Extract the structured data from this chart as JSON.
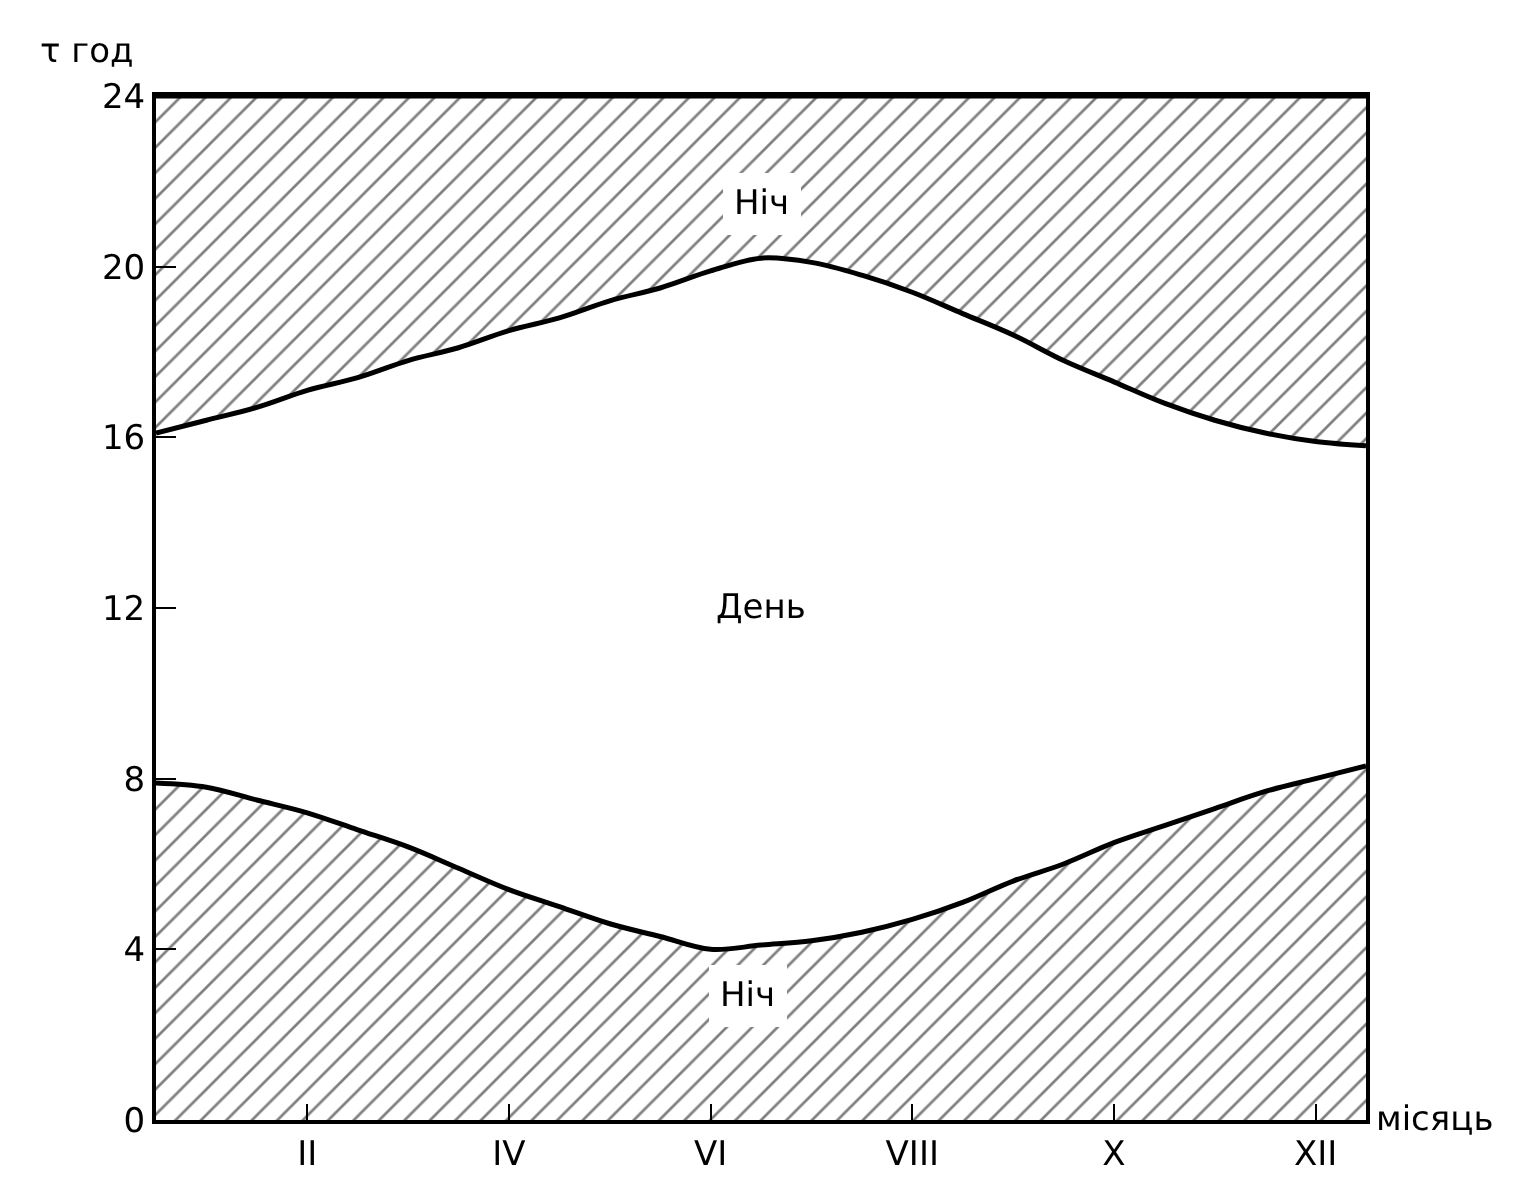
{
  "chart_data": {
    "type": "area",
    "stacked": true,
    "xlabel": "місяць",
    "ylabel": "τ год",
    "categories": [
      null,
      null,
      null,
      "II",
      null,
      null,
      null,
      "IV",
      null,
      null,
      null,
      "VI",
      null,
      null,
      null,
      "VIII",
      null,
      null,
      null,
      "X",
      null,
      null,
      null,
      "XII",
      null
    ],
    "series": [
      {
        "color": "#000000",
        "values": [
          7.9,
          7.8,
          7.5,
          7.2,
          6.8,
          6.4,
          5.9,
          5.4,
          5.0,
          4.6,
          4.3,
          4.0,
          4.1,
          4.2,
          4.4,
          4.7,
          5.1,
          5.6,
          6.0,
          6.5,
          6.9,
          7.3,
          7.7,
          8.0,
          8.3
        ]
      },
      {
        "color": "#ffffff",
        "values": [
          8.2,
          8.6,
          9.2,
          9.9,
          10.6,
          11.4,
          12.2,
          13.1,
          13.8,
          14.6,
          15.2,
          15.9,
          16.1,
          15.9,
          15.4,
          14.7,
          13.8,
          12.8,
          11.8,
          10.8,
          9.9,
          9.1,
          8.4,
          7.9,
          7.5
        ]
      },
      {
        "color": "#000000",
        "values": [
          7.9,
          7.6,
          7.3,
          6.9,
          6.6,
          6.2,
          5.9,
          5.5,
          5.2,
          4.8,
          4.5,
          4.1,
          3.8,
          3.9,
          4.2,
          4.6,
          5.1,
          5.6,
          6.2,
          6.7,
          7.2,
          7.6,
          7.9,
          8.1,
          8.2
        ]
      }
    ],
    "ylim": [
      0,
      24
    ],
    "yticks": [
      0,
      4,
      8,
      12,
      16,
      20,
      24
    ],
    "annotations": [
      "Ніч",
      "День",
      "Ніч"
    ]
  }
}
